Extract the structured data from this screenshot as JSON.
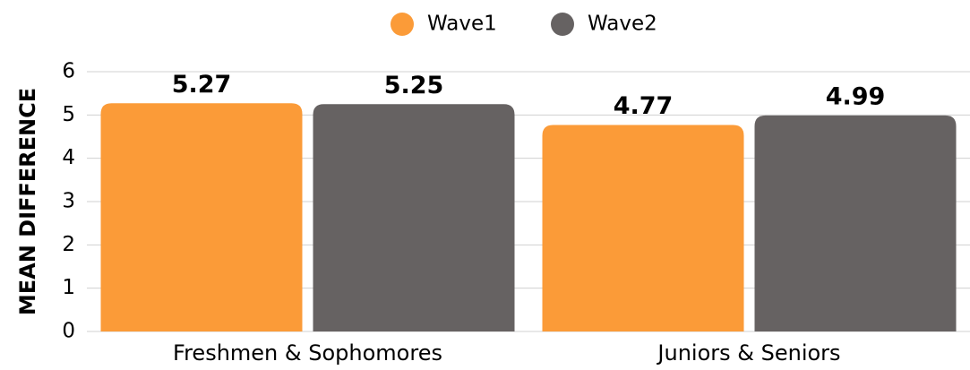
{
  "chart_data": {
    "type": "bar",
    "y_label": "MEAN DIFFERENCE",
    "categories": [
      "Freshmen & Sophomores",
      "Juniors & Seniors"
    ],
    "series": [
      {
        "name": "Wave1",
        "color": "#fb9b38",
        "values": [
          5.27,
          4.77
        ]
      },
      {
        "name": "Wave2",
        "color": "#666262",
        "values": [
          5.25,
          4.99
        ]
      }
    ],
    "ylim": [
      0,
      6
    ],
    "yticks": [
      0,
      1,
      2,
      3,
      4,
      5,
      6
    ],
    "grid": true,
    "legend": "top"
  }
}
